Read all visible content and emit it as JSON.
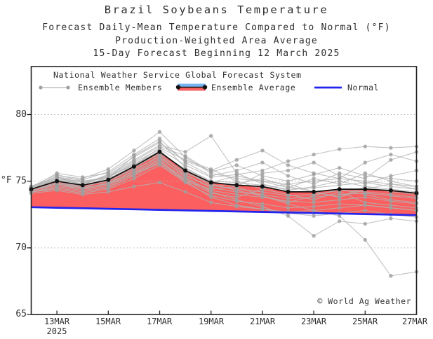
{
  "title": "Brazil Soybeans Temperature",
  "subtitle1": "Forecast Daily-Mean Temperature Compared to Normal (°F)",
  "subtitle2": "Production-Weighted Area Average",
  "subtitle3": "15-Day Forecast Beginning 12 March 2025",
  "legend": {
    "header": "National Weather Service Global Forecast System",
    "members_label": "Ensemble Members",
    "average_label": "Ensemble Average",
    "normal_label": "Normal"
  },
  "watermark": "© World Ag Weather",
  "axis": {
    "unit_label": "°F",
    "y_ticks": [
      80,
      75,
      70,
      65
    ],
    "x_tick_labels": [
      "13MAR",
      "15MAR",
      "17MAR",
      "19MAR",
      "21MAR",
      "23MAR",
      "25MAR",
      "27MAR"
    ],
    "x_year_label": "2025"
  },
  "chart_data": {
    "type": "line",
    "x": [
      "12MAR",
      "13MAR",
      "14MAR",
      "15MAR",
      "16MAR",
      "17MAR",
      "18MAR",
      "19MAR",
      "20MAR",
      "21MAR",
      "22MAR",
      "23MAR",
      "24MAR",
      "25MAR",
      "26MAR",
      "27MAR"
    ],
    "ylim": [
      65,
      83.6
    ],
    "gridlines_at": [
      70,
      75,
      80
    ],
    "grid": "dotted",
    "legend_position": "top-inside",
    "series": [
      {
        "name": "Ensemble Average",
        "values": [
          74.4,
          75.0,
          74.7,
          75.1,
          76.1,
          77.2,
          75.8,
          74.9,
          74.7,
          74.6,
          74.2,
          74.2,
          74.4,
          74.4,
          74.3,
          74.1
        ]
      },
      {
        "name": "Normal",
        "values": [
          73.05,
          73.01,
          72.97,
          72.93,
          72.89,
          72.85,
          72.81,
          72.77,
          72.73,
          72.69,
          72.65,
          72.61,
          72.57,
          72.53,
          72.49,
          72.45
        ]
      }
    ],
    "ensemble_members": [
      [
        74.5,
        75.4,
        75.2,
        75.9,
        77.3,
        78.7,
        76.8,
        75.6,
        75.2,
        75.0,
        74.8,
        75.0,
        75.2,
        75.0,
        74.8,
        74.6
      ],
      [
        74.6,
        75.3,
        74.9,
        75.4,
        76.5,
        77.6,
        76.9,
        75.7,
        76.2,
        75.4,
        75.0,
        75.5,
        76.0,
        75.4,
        75.2,
        75.0
      ],
      [
        74.5,
        75.6,
        75.3,
        75.6,
        76.8,
        77.9,
        76.5,
        75.8,
        76.6,
        77.3,
        76.2,
        75.6,
        75.2,
        76.4,
        77.0,
        76.5
      ],
      [
        74.4,
        75.2,
        75.0,
        75.3,
        76.4,
        77.4,
        76.2,
        75.3,
        75.5,
        75.8,
        76.5,
        77.0,
        77.4,
        77.6,
        77.5,
        77.6
      ],
      [
        74.3,
        74.9,
        74.6,
        75.0,
        76.0,
        77.1,
        75.9,
        75.0,
        74.9,
        74.7,
        74.4,
        74.5,
        74.7,
        74.9,
        74.6,
        74.4
      ],
      [
        74.4,
        75.1,
        74.8,
        75.2,
        76.2,
        77.3,
        75.7,
        74.7,
        74.4,
        74.2,
        73.9,
        74.0,
        74.3,
        74.2,
        74.0,
        73.8
      ],
      [
        74.2,
        74.6,
        74.3,
        74.6,
        75.5,
        76.5,
        75.2,
        74.3,
        74.0,
        73.8,
        73.5,
        73.4,
        73.6,
        73.8,
        73.5,
        73.3
      ],
      [
        74.3,
        74.8,
        74.5,
        74.8,
        75.8,
        76.9,
        75.5,
        74.5,
        74.2,
        74.0,
        73.7,
        73.8,
        74.0,
        74.1,
        73.9,
        73.7
      ],
      [
        74.2,
        74.4,
        74.1,
        74.4,
        75.2,
        76.2,
        74.9,
        73.9,
        73.5,
        73.3,
        73.0,
        73.1,
        73.3,
        73.2,
        73.0,
        72.8
      ],
      [
        74.3,
        74.7,
        74.4,
        74.7,
        75.6,
        76.6,
        75.0,
        73.8,
        73.2,
        72.9,
        72.6,
        72.4,
        72.6,
        72.8,
        72.5,
        72.3
      ],
      [
        74.4,
        75.0,
        74.6,
        75.0,
        75.9,
        76.8,
        75.3,
        74.2,
        73.6,
        73.1,
        72.4,
        70.9,
        72.0,
        71.8,
        72.2,
        72.0
      ],
      [
        74.5,
        75.2,
        74.9,
        75.3,
        76.3,
        77.2,
        75.8,
        74.8,
        74.3,
        73.9,
        73.3,
        72.8,
        72.4,
        70.6,
        67.9,
        68.2
      ],
      [
        74.4,
        75.1,
        74.8,
        75.5,
        76.6,
        77.7,
        77.2,
        78.4,
        75.6,
        74.8,
        74.3,
        74.6,
        75.0,
        74.6,
        74.4,
        74.2
      ],
      [
        74.5,
        75.3,
        75.1,
        75.7,
        77.0,
        78.2,
        76.4,
        75.4,
        75.8,
        76.4,
        75.4,
        74.8,
        75.6,
        75.2,
        76.6,
        77.2
      ],
      [
        74.3,
        74.8,
        74.4,
        74.9,
        75.7,
        76.7,
        75.4,
        74.6,
        74.8,
        75.2,
        74.6,
        74.2,
        73.8,
        74.4,
        74.8,
        74.4
      ],
      [
        74.4,
        75.0,
        74.7,
        75.1,
        76.1,
        77.0,
        75.6,
        74.9,
        75.4,
        75.0,
        74.5,
        75.2,
        74.8,
        75.6,
        75.0,
        74.6
      ],
      [
        74.2,
        74.5,
        74.2,
        74.5,
        75.4,
        76.4,
        75.1,
        74.1,
        73.8,
        74.4,
        74.0,
        73.6,
        74.2,
        73.4,
        73.2,
        73.0
      ],
      [
        74.6,
        75.5,
        75.0,
        75.2,
        76.9,
        78.0,
        76.0,
        75.0,
        74.6,
        75.6,
        75.8,
        76.4,
        75.4,
        74.8,
        75.4,
        75.8
      ],
      [
        74.3,
        74.9,
        74.5,
        74.8,
        75.6,
        76.3,
        75.0,
        74.4,
        74.6,
        73.9,
        73.4,
        73.9,
        74.4,
        74.0,
        73.6,
        73.4
      ],
      [
        74.4,
        75.2,
        74.8,
        75.4,
        76.2,
        77.5,
        76.6,
        75.9,
        75.0,
        74.4,
        74.8,
        74.2,
        73.8,
        74.6,
        74.2,
        74.0
      ],
      [
        74.1,
        74.3,
        74.0,
        74.2,
        74.6,
        74.9,
        74.2,
        73.4,
        73.1,
        72.9,
        72.7,
        72.8,
        73.0,
        73.2,
        73.0,
        72.8
      ]
    ],
    "colors": {
      "above_normal_fill": "#fb5f5f",
      "normal": "#2323ee",
      "ensemble_average": "#111111",
      "member_line": "#b3b3b3",
      "member_dot": "#9f9f9f",
      "legend_blue_fill": "#76b4f0",
      "gridline": "#b5b5b5",
      "axis": "#222222"
    }
  }
}
